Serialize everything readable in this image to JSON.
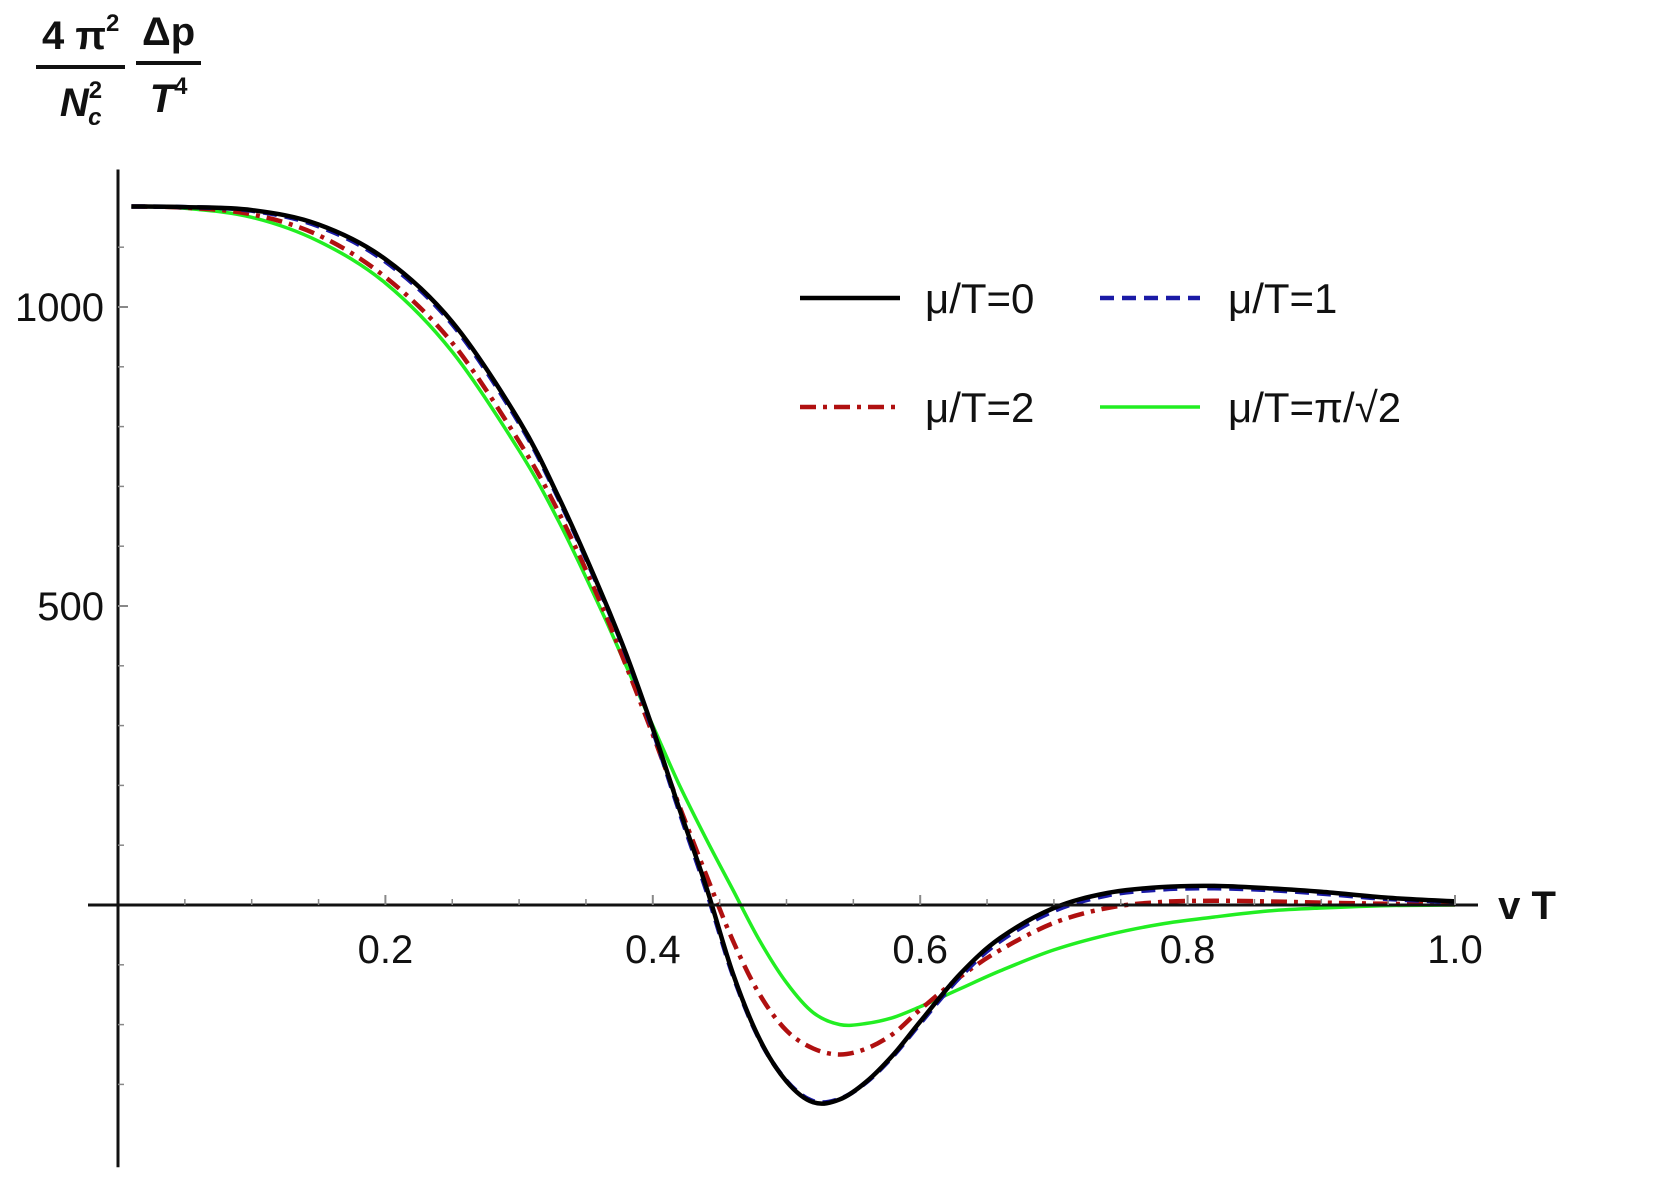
{
  "chart_data": {
    "type": "line",
    "ylabel": {
      "numerator": [
        "4 π",
        "2",
        "Δp"
      ],
      "denominator": [
        "N",
        "c",
        "2",
        "T",
        "4"
      ]
    },
    "xlabel": "v T",
    "xlim": [
      0,
      1.0
    ],
    "ylim": [
      -380,
      1230
    ],
    "xticks": [
      0.2,
      0.4,
      0.6,
      0.8,
      1.0
    ],
    "xtick_labels": [
      "0.2",
      "0.4",
      "0.6",
      "0.8",
      "1.0"
    ],
    "yticks": [
      500,
      1000
    ],
    "ytick_labels": [
      "500",
      "1000"
    ],
    "grid": false,
    "legend_position": "top-right",
    "series": [
      {
        "name": "μ/T=0",
        "color": "#000000",
        "style": "solid",
        "x": [
          0.01,
          0.05,
          0.1,
          0.15,
          0.2,
          0.25,
          0.3,
          0.33,
          0.36,
          0.38,
          0.4,
          0.42,
          0.44,
          0.46,
          0.48,
          0.5,
          0.52,
          0.54,
          0.56,
          0.58,
          0.6,
          0.63,
          0.66,
          0.7,
          0.74,
          0.78,
          0.82,
          0.86,
          0.9,
          0.95,
          1.0
        ],
        "y": [
          1168,
          1167,
          1162,
          1138,
          1080,
          975,
          810,
          680,
          530,
          420,
          295,
          160,
          30,
          -115,
          -225,
          -295,
          -330,
          -325,
          -295,
          -250,
          -195,
          -115,
          -55,
          -5,
          20,
          30,
          32,
          28,
          22,
          12,
          6
        ]
      },
      {
        "name": "μ/T=1",
        "color": "#1a1aa6",
        "style": "dashed",
        "x": [
          0.01,
          0.05,
          0.1,
          0.15,
          0.2,
          0.25,
          0.3,
          0.33,
          0.36,
          0.38,
          0.4,
          0.42,
          0.44,
          0.46,
          0.48,
          0.5,
          0.52,
          0.54,
          0.56,
          0.58,
          0.6,
          0.63,
          0.66,
          0.7,
          0.74,
          0.78,
          0.82,
          0.86,
          0.9,
          0.95,
          1.0
        ],
        "y": [
          1168,
          1167,
          1161,
          1135,
          1076,
          971,
          806,
          677,
          528,
          418,
          292,
          155,
          24,
          -118,
          -226,
          -294,
          -328,
          -324,
          -296,
          -252,
          -198,
          -120,
          -60,
          -10,
          16,
          26,
          28,
          25,
          19,
          10,
          5
        ]
      },
      {
        "name": "μ/T=2",
        "color": "#b01010",
        "style": "dashdot",
        "x": [
          0.01,
          0.05,
          0.1,
          0.15,
          0.2,
          0.25,
          0.3,
          0.33,
          0.36,
          0.38,
          0.4,
          0.42,
          0.44,
          0.46,
          0.48,
          0.5,
          0.52,
          0.54,
          0.56,
          0.58,
          0.6,
          0.63,
          0.66,
          0.7,
          0.74,
          0.78,
          0.82,
          0.86,
          0.9,
          0.95,
          1.0
        ],
        "y": [
          1168,
          1166,
          1155,
          1120,
          1050,
          940,
          775,
          655,
          510,
          400,
          285,
          165,
          50,
          -60,
          -150,
          -210,
          -240,
          -250,
          -240,
          -215,
          -175,
          -120,
          -75,
          -30,
          -5,
          5,
          7,
          6,
          4,
          2,
          1
        ]
      },
      {
        "name": "μ/T=π/√2",
        "color": "#22ee22",
        "style": "solid",
        "x": [
          0.01,
          0.05,
          0.1,
          0.15,
          0.2,
          0.25,
          0.3,
          0.33,
          0.36,
          0.38,
          0.4,
          0.42,
          0.44,
          0.46,
          0.48,
          0.5,
          0.52,
          0.54,
          0.56,
          0.58,
          0.6,
          0.63,
          0.66,
          0.7,
          0.74,
          0.78,
          0.82,
          0.86,
          0.9,
          0.95,
          1.0
        ],
        "y": [
          1168,
          1165,
          1150,
          1110,
          1040,
          925,
          760,
          640,
          500,
          400,
          300,
          200,
          110,
          25,
          -60,
          -130,
          -180,
          -200,
          -198,
          -188,
          -170,
          -140,
          -110,
          -75,
          -50,
          -32,
          -20,
          -10,
          -5,
          -1,
          0
        ]
      }
    ]
  }
}
